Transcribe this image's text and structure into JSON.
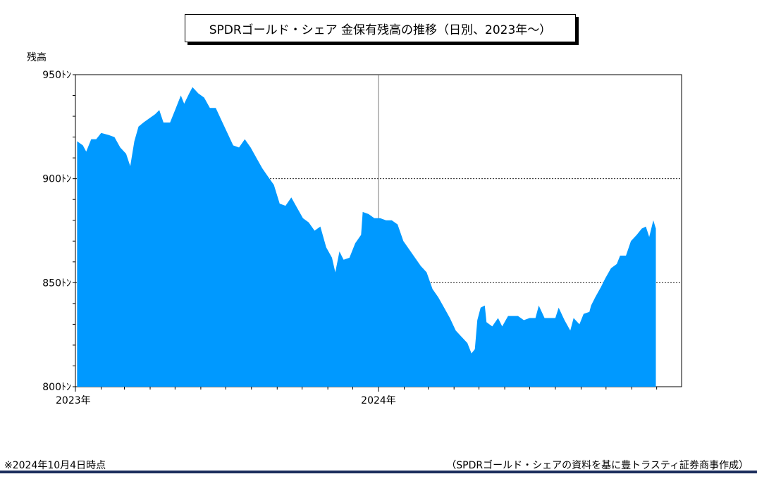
{
  "chart_data": {
    "type": "area",
    "title": "SPDRゴールド・シェア 金保有残高の推移（日別、2023年～）",
    "ylabel": "残高",
    "xlabel": "",
    "ylim": [
      800,
      950
    ],
    "yticks": [
      {
        "value": 800,
        "label": "800ﾄﾝ"
      },
      {
        "value": 850,
        "label": "850ﾄﾝ"
      },
      {
        "value": 900,
        "label": "900ﾄﾝ"
      },
      {
        "value": 950,
        "label": "950ﾄﾝ"
      }
    ],
    "xlim": [
      "2023-01-01",
      "2024-12-31"
    ],
    "xticks": [
      {
        "date": "2023-01-01",
        "label": "2023年"
      },
      {
        "date": "2024-01-01",
        "label": "2024年"
      }
    ],
    "gridlines_y": [
      900,
      850
    ],
    "year_divider": "2024-01-01",
    "fill_color": "#0099ff",
    "series": [
      {
        "points": [
          [
            "2023-01-03",
            918
          ],
          [
            "2023-01-10",
            916
          ],
          [
            "2023-01-14",
            913
          ],
          [
            "2023-01-20",
            919
          ],
          [
            "2023-01-26",
            919
          ],
          [
            "2023-02-01",
            922
          ],
          [
            "2023-02-10",
            921
          ],
          [
            "2023-02-17",
            920
          ],
          [
            "2023-02-24",
            915
          ],
          [
            "2023-03-03",
            912
          ],
          [
            "2023-03-08",
            906
          ],
          [
            "2023-03-13",
            918
          ],
          [
            "2023-03-18",
            925
          ],
          [
            "2023-03-24",
            927
          ],
          [
            "2023-03-31",
            929
          ],
          [
            "2023-04-07",
            931
          ],
          [
            "2023-04-12",
            933
          ],
          [
            "2023-04-17",
            927
          ],
          [
            "2023-04-25",
            927
          ],
          [
            "2023-05-01",
            933
          ],
          [
            "2023-05-08",
            940
          ],
          [
            "2023-05-12",
            936
          ],
          [
            "2023-05-18",
            941
          ],
          [
            "2023-05-22",
            944
          ],
          [
            "2023-05-29",
            941
          ],
          [
            "2023-06-05",
            939
          ],
          [
            "2023-06-12",
            934
          ],
          [
            "2023-06-19",
            934
          ],
          [
            "2023-06-26",
            928
          ],
          [
            "2023-07-03",
            922
          ],
          [
            "2023-07-10",
            916
          ],
          [
            "2023-07-17",
            915
          ],
          [
            "2023-07-24",
            919
          ],
          [
            "2023-07-31",
            915
          ],
          [
            "2023-08-07",
            910
          ],
          [
            "2023-08-14",
            905
          ],
          [
            "2023-08-21",
            901
          ],
          [
            "2023-08-28",
            897
          ],
          [
            "2023-09-04",
            888
          ],
          [
            "2023-09-11",
            887
          ],
          [
            "2023-09-18",
            891
          ],
          [
            "2023-09-25",
            886
          ],
          [
            "2023-10-02",
            881
          ],
          [
            "2023-10-09",
            879
          ],
          [
            "2023-10-16",
            875
          ],
          [
            "2023-10-23",
            877
          ],
          [
            "2023-10-30",
            867
          ],
          [
            "2023-11-06",
            862
          ],
          [
            "2023-11-10",
            855
          ],
          [
            "2023-11-15",
            865
          ],
          [
            "2023-11-20",
            861
          ],
          [
            "2023-11-27",
            862
          ],
          [
            "2023-12-04",
            869
          ],
          [
            "2023-12-11",
            873
          ],
          [
            "2023-12-13",
            884
          ],
          [
            "2023-12-20",
            883
          ],
          [
            "2023-12-27",
            881
          ],
          [
            "2024-01-03",
            881
          ],
          [
            "2024-01-10",
            880
          ],
          [
            "2024-01-17",
            880
          ],
          [
            "2024-01-24",
            878
          ],
          [
            "2024-01-31",
            870
          ],
          [
            "2024-02-07",
            866
          ],
          [
            "2024-02-14",
            862
          ],
          [
            "2024-02-21",
            858
          ],
          [
            "2024-02-28",
            855
          ],
          [
            "2024-03-06",
            847
          ],
          [
            "2024-03-13",
            843
          ],
          [
            "2024-03-20",
            838
          ],
          [
            "2024-03-27",
            833
          ],
          [
            "2024-04-03",
            827
          ],
          [
            "2024-04-10",
            824
          ],
          [
            "2024-04-17",
            821
          ],
          [
            "2024-04-22",
            816
          ],
          [
            "2024-04-26",
            818
          ],
          [
            "2024-04-29",
            832
          ],
          [
            "2024-05-03",
            838
          ],
          [
            "2024-05-08",
            839
          ],
          [
            "2024-05-10",
            831
          ],
          [
            "2024-05-17",
            829
          ],
          [
            "2024-05-24",
            833
          ],
          [
            "2024-05-29",
            829
          ],
          [
            "2024-06-05",
            834
          ],
          [
            "2024-06-10",
            834
          ],
          [
            "2024-06-17",
            834
          ],
          [
            "2024-06-24",
            832
          ],
          [
            "2024-07-01",
            833
          ],
          [
            "2024-07-08",
            833
          ],
          [
            "2024-07-12",
            839
          ],
          [
            "2024-07-19",
            833
          ],
          [
            "2024-07-26",
            833
          ],
          [
            "2024-08-01",
            833
          ],
          [
            "2024-08-05",
            838
          ],
          [
            "2024-08-12",
            832
          ],
          [
            "2024-08-19",
            827
          ],
          [
            "2024-08-23",
            833
          ],
          [
            "2024-08-30",
            830
          ],
          [
            "2024-09-04",
            835
          ],
          [
            "2024-09-11",
            836
          ],
          [
            "2024-09-13",
            839
          ],
          [
            "2024-09-18",
            843
          ],
          [
            "2024-09-25",
            848
          ],
          [
            "2024-09-30",
            852
          ],
          [
            "2024-10-07",
            857
          ],
          [
            "2024-10-14",
            859
          ],
          [
            "2024-10-18",
            863
          ],
          [
            "2024-10-25",
            863
          ],
          [
            "2024-10-31",
            870
          ],
          [
            "2024-11-07",
            873
          ],
          [
            "2024-11-13",
            876
          ],
          [
            "2024-11-18",
            877
          ],
          [
            "2024-11-22",
            872
          ],
          [
            "2024-11-27",
            880
          ],
          [
            "2024-11-30",
            876
          ]
        ]
      }
    ],
    "grid": false,
    "legend": "none"
  },
  "footnote": "※2024年10月4日時点",
  "source": "（SPDRゴールド・シェアの資料を基に豊トラスティ証券商事作成）"
}
